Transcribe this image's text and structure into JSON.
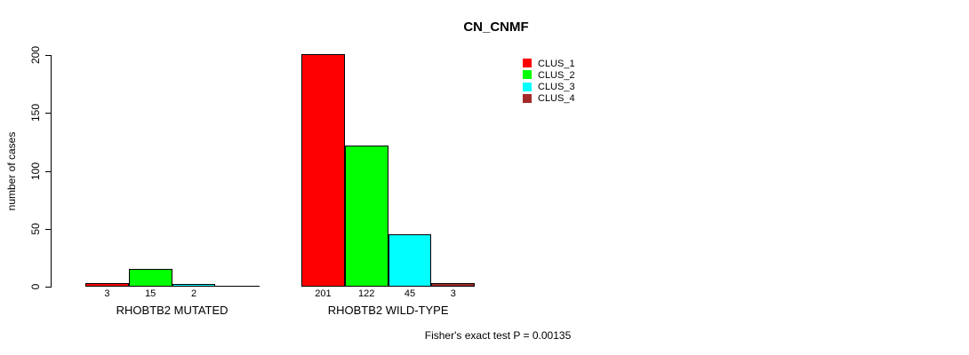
{
  "title": "CN_CNMF",
  "ylabel": "number of cases",
  "annotation": "Fisher's exact test P = 0.00135",
  "chart_data": {
    "type": "bar",
    "title": "CN_CNMF",
    "ylabel": "number of cases",
    "xlabel": "",
    "ylim": [
      0,
      200
    ],
    "yticks": [
      0,
      50,
      100,
      150,
      200
    ],
    "grid": false,
    "legend_position": "top-right-inside",
    "categories": [
      "RHOBTB2 MUTATED",
      "RHOBTB2 WILD-TYPE"
    ],
    "series": [
      {
        "name": "CLUS_1",
        "color": "#ff0000",
        "values": [
          3,
          201
        ]
      },
      {
        "name": "CLUS_2",
        "color": "#00ff00",
        "values": [
          15,
          122
        ]
      },
      {
        "name": "CLUS_3",
        "color": "#00ffff",
        "values": [
          2,
          45
        ]
      },
      {
        "name": "CLUS_4",
        "color": "#a52a2a",
        "values": [
          0,
          3
        ]
      }
    ],
    "bar_value_labels": [
      [
        "3",
        "15",
        "2",
        ""
      ],
      [
        "201",
        "122",
        "45",
        "3"
      ]
    ],
    "annotation": "Fisher's exact test P = 0.00135"
  }
}
